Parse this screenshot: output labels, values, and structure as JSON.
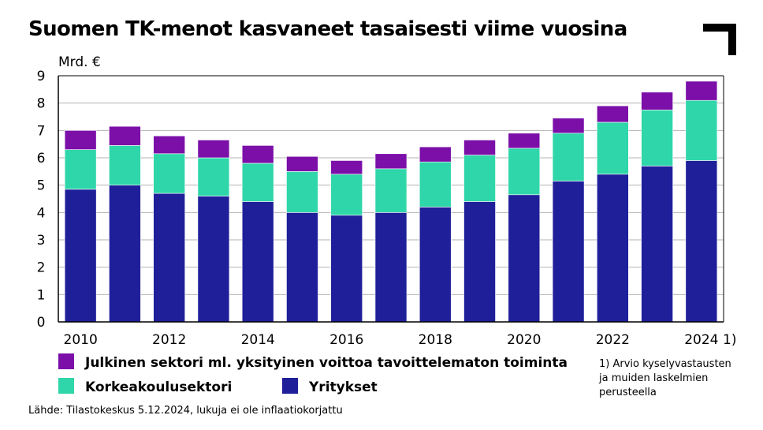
{
  "title": "Suomen TK-menot kasvaneet tasaisesti viime vuosina",
  "unit_label": "Mrd. €",
  "footnote_marker": "1)",
  "footnote_text": "1) Arvio kyselyvastausten\nja muiden laskelmien\nperusteella",
  "source": "Lähde: Tilastokeskus 5.12.2024, lukuja ei ole inflaatiokorjattu",
  "colors": {
    "julkinen": "#7b0fa8",
    "korkeakoulu": "#2fd6a9",
    "yritykset": "#1f1f9a",
    "grid": "#b3b3b3",
    "logo": "#000000"
  },
  "chart_data": {
    "type": "bar",
    "stacked": true,
    "categories": [
      "2010",
      "2011",
      "2012",
      "2013",
      "2014",
      "2015",
      "2016",
      "2017",
      "2018",
      "2019",
      "2020",
      "2021",
      "2022",
      "2023",
      "2024"
    ],
    "tick_labels": [
      "2010",
      "2012",
      "2014",
      "2016",
      "2018",
      "2020",
      "2022",
      "2024"
    ],
    "ylim": [
      0,
      9
    ],
    "yticks": [
      0,
      1,
      2,
      3,
      4,
      5,
      6,
      7,
      8,
      9
    ],
    "ylabel": "Mrd. €",
    "grid": true,
    "series": [
      {
        "name": "Yritykset",
        "key": "yritykset",
        "values": [
          4.85,
          5.0,
          4.7,
          4.6,
          4.4,
          4.0,
          3.9,
          4.0,
          4.2,
          4.4,
          4.65,
          5.15,
          5.4,
          5.7,
          5.9
        ]
      },
      {
        "name": "Korkeakoulusektori",
        "key": "korkeakoulu",
        "values": [
          1.45,
          1.45,
          1.45,
          1.4,
          1.4,
          1.5,
          1.5,
          1.6,
          1.65,
          1.7,
          1.7,
          1.75,
          1.9,
          2.05,
          2.2
        ]
      },
      {
        "name": "Julkinen sektori ml. yksityinen voittoa tavoittelematon toiminta",
        "key": "julkinen",
        "values": [
          0.7,
          0.7,
          0.65,
          0.65,
          0.65,
          0.55,
          0.5,
          0.55,
          0.55,
          0.55,
          0.55,
          0.55,
          0.6,
          0.65,
          0.7
        ]
      }
    ]
  }
}
